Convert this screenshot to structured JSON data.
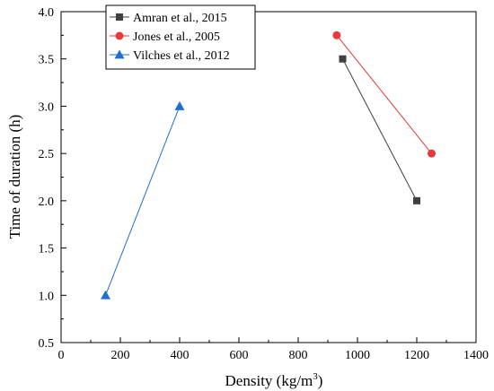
{
  "chart_data": {
    "type": "line",
    "xlabel_main": "Density (kg/m",
    "xlabel_sup": "3",
    "xlabel_close": ")",
    "ylabel": "Time of duration (h)",
    "xlim": [
      0,
      1400
    ],
    "ylim": [
      0.5,
      4.0
    ],
    "x_ticks": [
      0,
      200,
      400,
      600,
      800,
      1000,
      1200,
      1400
    ],
    "y_ticks": [
      0.5,
      1.0,
      1.5,
      2.0,
      2.5,
      3.0,
      3.5,
      4.0
    ],
    "x_tick_labels": [
      "0",
      "200",
      "400",
      "600",
      "800",
      "1000",
      "1200",
      "1400"
    ],
    "y_tick_labels": [
      "0.5",
      "1.0",
      "1.5",
      "2.0",
      "2.5",
      "3.0",
      "3.5",
      "4.0"
    ],
    "legend_position": "top-left",
    "grid": false,
    "series": [
      {
        "name": "Amran et al., 2015",
        "marker": "square",
        "color": "#404040",
        "points": [
          [
            950,
            3.5
          ],
          [
            1200,
            2.0
          ]
        ]
      },
      {
        "name": "Jones et al., 2005",
        "marker": "circle",
        "color": "#e8383b",
        "points": [
          [
            930,
            3.75
          ],
          [
            1250,
            2.5
          ]
        ]
      },
      {
        "name": "Vilches et al., 2012",
        "marker": "triangle",
        "color": "#1f6fd1",
        "points": [
          [
            150,
            1.0
          ],
          [
            400,
            3.0
          ]
        ]
      }
    ]
  }
}
